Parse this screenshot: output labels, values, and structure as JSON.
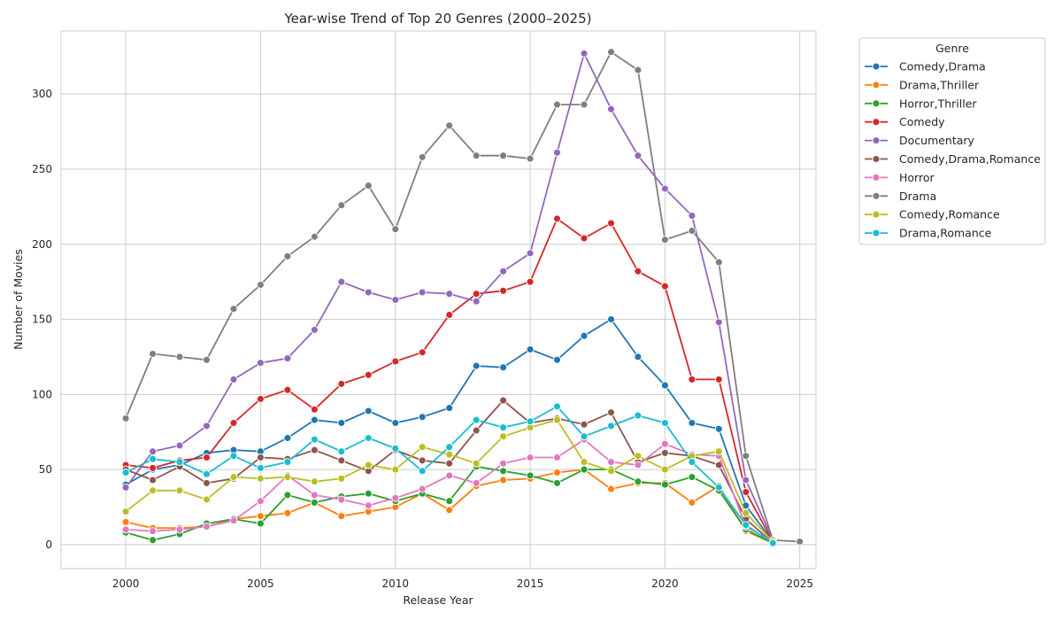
{
  "chart_data": {
    "type": "line",
    "title": "Year-wise Trend of Top 20 Genres (2000–2025)",
    "xlabel": "Release Year",
    "ylabel": "Number of Movies",
    "xlim": [
      1997.6,
      2025.6
    ],
    "ylim": [
      -16,
      342
    ],
    "xticks": [
      2000,
      2005,
      2010,
      2015,
      2020,
      2025
    ],
    "yticks": [
      0,
      50,
      100,
      150,
      200,
      250,
      300
    ],
    "grid": true,
    "legend": {
      "title": "Genre",
      "placement": "outside-right-top"
    },
    "series": [
      {
        "name": "Comedy,Drama",
        "color": "#1f77b4",
        "x": [
          2000,
          2001,
          2002,
          2003,
          2004,
          2005,
          2006,
          2007,
          2008,
          2009,
          2010,
          2011,
          2012,
          2013,
          2014,
          2015,
          2016,
          2017,
          2018,
          2019,
          2020,
          2021,
          2022,
          2023,
          2024
        ],
        "y": [
          40,
          50,
          53,
          61,
          63,
          62,
          71,
          83,
          81,
          89,
          81,
          85,
          91,
          119,
          118,
          130,
          123,
          139,
          150,
          125,
          106,
          81,
          77,
          26,
          2
        ]
      },
      {
        "name": "Drama,Thriller",
        "color": "#ff7f0e",
        "x": [
          2000,
          2001,
          2002,
          2003,
          2004,
          2005,
          2006,
          2007,
          2008,
          2009,
          2010,
          2011,
          2012,
          2013,
          2014,
          2015,
          2016,
          2017,
          2018,
          2019,
          2020,
          2021,
          2022,
          2023,
          2024
        ],
        "y": [
          15,
          11,
          11,
          12,
          17,
          19,
          21,
          28,
          19,
          22,
          25,
          34,
          23,
          39,
          43,
          44,
          48,
          50,
          37,
          41,
          41,
          28,
          39,
          9,
          1
        ]
      },
      {
        "name": "Horror,Thriller",
        "color": "#2ca02c",
        "x": [
          2000,
          2001,
          2002,
          2003,
          2004,
          2005,
          2006,
          2007,
          2008,
          2009,
          2010,
          2011,
          2012,
          2013,
          2014,
          2015,
          2016,
          2017,
          2018,
          2019,
          2020,
          2021,
          2022,
          2023,
          2024
        ],
        "y": [
          8,
          3,
          7,
          14,
          17,
          14,
          33,
          28,
          32,
          34,
          29,
          34,
          29,
          52,
          49,
          46,
          41,
          50,
          50,
          42,
          40,
          45,
          36,
          10,
          1
        ]
      },
      {
        "name": "Comedy",
        "color": "#d62728",
        "x": [
          2000,
          2001,
          2002,
          2003,
          2004,
          2005,
          2006,
          2007,
          2008,
          2009,
          2010,
          2011,
          2012,
          2013,
          2014,
          2015,
          2016,
          2017,
          2018,
          2019,
          2020,
          2021,
          2022,
          2023,
          2024
        ],
        "y": [
          53,
          51,
          56,
          58,
          81,
          97,
          103,
          90,
          107,
          113,
          122,
          128,
          153,
          167,
          169,
          175,
          217,
          204,
          214,
          182,
          172,
          110,
          110,
          35,
          2
        ]
      },
      {
        "name": "Documentary",
        "color": "#9467bd",
        "x": [
          2000,
          2001,
          2002,
          2003,
          2004,
          2005,
          2006,
          2007,
          2008,
          2009,
          2010,
          2011,
          2012,
          2013,
          2014,
          2015,
          2016,
          2017,
          2018,
          2019,
          2020,
          2021,
          2022,
          2023,
          2024
        ],
        "y": [
          38,
          62,
          66,
          79,
          110,
          121,
          124,
          143,
          175,
          168,
          163,
          168,
          167,
          162,
          182,
          194,
          261,
          327,
          290,
          259,
          237,
          219,
          148,
          43,
          3
        ]
      },
      {
        "name": "Comedy,Drama,Romance",
        "color": "#8c564b",
        "x": [
          2000,
          2001,
          2002,
          2003,
          2004,
          2005,
          2006,
          2007,
          2008,
          2009,
          2010,
          2011,
          2012,
          2013,
          2014,
          2015,
          2016,
          2017,
          2018,
          2019,
          2020,
          2021,
          2022,
          2023,
          2024
        ],
        "y": [
          50,
          43,
          52,
          41,
          44,
          58,
          57,
          63,
          56,
          49,
          63,
          56,
          54,
          76,
          96,
          81,
          84,
          80,
          88,
          55,
          61,
          59,
          53,
          17,
          1
        ]
      },
      {
        "name": "Horror",
        "color": "#e377c2",
        "x": [
          2000,
          2001,
          2002,
          2003,
          2004,
          2005,
          2006,
          2007,
          2008,
          2009,
          2010,
          2011,
          2012,
          2013,
          2014,
          2015,
          2016,
          2017,
          2018,
          2019,
          2020,
          2021,
          2022,
          2023,
          2024
        ],
        "y": [
          10,
          9,
          10,
          12,
          16,
          29,
          46,
          33,
          30,
          26,
          31,
          37,
          46,
          41,
          54,
          58,
          58,
          70,
          55,
          53,
          67,
          60,
          59,
          12,
          2
        ]
      },
      {
        "name": "Drama",
        "color": "#7f7f7f",
        "x": [
          2000,
          2001,
          2002,
          2003,
          2004,
          2005,
          2006,
          2007,
          2008,
          2009,
          2010,
          2011,
          2012,
          2013,
          2014,
          2015,
          2016,
          2017,
          2018,
          2019,
          2020,
          2021,
          2022,
          2023,
          2024,
          2025
        ],
        "y": [
          84,
          127,
          125,
          123,
          157,
          173,
          192,
          205,
          226,
          239,
          210,
          258,
          279,
          259,
          259,
          257,
          293,
          293,
          328,
          316,
          203,
          209,
          188,
          59,
          3,
          2
        ]
      },
      {
        "name": "Comedy,Romance",
        "color": "#bcbd22",
        "x": [
          2000,
          2001,
          2002,
          2003,
          2004,
          2005,
          2006,
          2007,
          2008,
          2009,
          2010,
          2011,
          2012,
          2013,
          2014,
          2015,
          2016,
          2017,
          2018,
          2019,
          2020,
          2021,
          2022,
          2023,
          2024
        ],
        "y": [
          22,
          36,
          36,
          30,
          45,
          44,
          45,
          42,
          44,
          53,
          50,
          65,
          60,
          54,
          72,
          78,
          83,
          55,
          49,
          59,
          50,
          59,
          62,
          21,
          2
        ]
      },
      {
        "name": "Drama,Romance",
        "color": "#17becf",
        "x": [
          2000,
          2001,
          2002,
          2003,
          2004,
          2005,
          2006,
          2007,
          2008,
          2009,
          2010,
          2011,
          2012,
          2013,
          2014,
          2015,
          2016,
          2017,
          2018,
          2019,
          2020,
          2021,
          2022,
          2023,
          2024
        ],
        "y": [
          48,
          57,
          55,
          47,
          59,
          51,
          55,
          70,
          62,
          71,
          64,
          49,
          65,
          83,
          78,
          82,
          92,
          72,
          79,
          86,
          81,
          55,
          38,
          13,
          1
        ]
      }
    ]
  }
}
